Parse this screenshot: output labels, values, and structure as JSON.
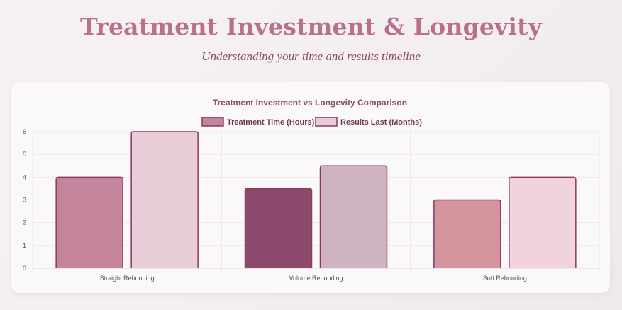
{
  "header": {
    "title": "Treatment Investment & Longevity",
    "subtitle": "Understanding your time and results timeline"
  },
  "chart_data": {
    "type": "bar",
    "title": "Treatment Investment vs Longevity Comparison",
    "categories": [
      "Straight Rebonding",
      "Volume Rebonding",
      "Soft Rebonding"
    ],
    "series": [
      {
        "name": "Treatment Time (Hours)",
        "values": [
          4,
          3.5,
          3
        ],
        "colors": [
          "#c4849c",
          "#8b4a6b",
          "#d4949e"
        ],
        "border_color": "#8b3a62",
        "legend_color": "#c4849c"
      },
      {
        "name": "Results Last (Months)",
        "values": [
          6,
          4.5,
          4
        ],
        "colors": [
          "#e8cdd8",
          "#cfb3c1",
          "#f0d3dc"
        ],
        "border_color": "#8b3a62",
        "legend_color": "#e8cdd8"
      }
    ],
    "ylim": [
      0,
      6
    ],
    "yticks": [
      "0",
      "1",
      "2",
      "3",
      "4",
      "5",
      "6"
    ],
    "grid": true,
    "legend_position": "top-center"
  }
}
